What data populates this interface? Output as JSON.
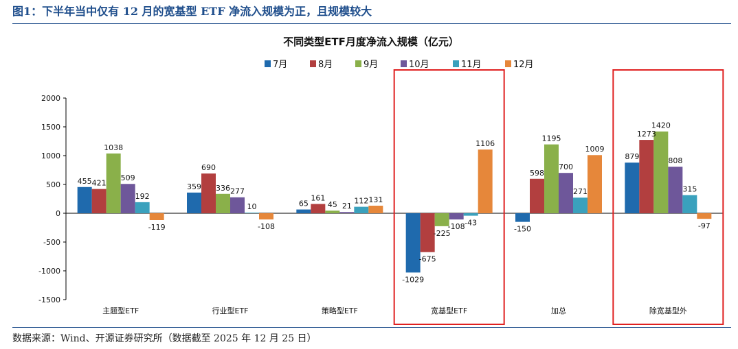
{
  "figure_title": "图1：下半年当中仅有 12 月的宽基型 ETF 净流入规模为正，且规模较大",
  "source_note": "数据来源：Wind、开源证券研究所（数据截至 2025 年 12 月 25 日）",
  "colors": {
    "series": [
      "#1f6aad",
      "#b23f3f",
      "#8ab04a",
      "#6e579a",
      "#3aa1bd",
      "#e6873a"
    ],
    "highlight_box": "#e02020",
    "title_blue": "#1f4e8c"
  },
  "chart_data": {
    "type": "bar",
    "title": "不同类型ETF月度净流入规模（亿元）",
    "xlabel": "",
    "ylabel": "",
    "ylim": [
      -1500,
      2000
    ],
    "yticks": [
      -1500,
      -1000,
      -500,
      0,
      500,
      1000,
      1500,
      2000
    ],
    "grid": false,
    "legend": "top-center",
    "categories": [
      "主题型ETF",
      "行业型ETF",
      "策略型ETF",
      "宽基型ETF",
      "加总",
      "除宽基型外"
    ],
    "series": [
      {
        "name": "7月",
        "values": [
          455,
          359,
          65,
          -1029,
          -150,
          879
        ]
      },
      {
        "name": "8月",
        "values": [
          421,
          690,
          161,
          -675,
          598,
          1273
        ]
      },
      {
        "name": "9月",
        "values": [
          1038,
          336,
          45,
          -225,
          1195,
          1420
        ]
      },
      {
        "name": "10月",
        "values": [
          509,
          277,
          21,
          -108,
          700,
          808
        ]
      },
      {
        "name": "11月",
        "values": [
          192,
          10,
          112,
          -43,
          271,
          315
        ]
      },
      {
        "name": "12月",
        "values": [
          -119,
          -108,
          131,
          1106,
          1009,
          -97
        ]
      }
    ],
    "highlighted_categories": [
      "宽基型ETF",
      "除宽基型外"
    ]
  }
}
